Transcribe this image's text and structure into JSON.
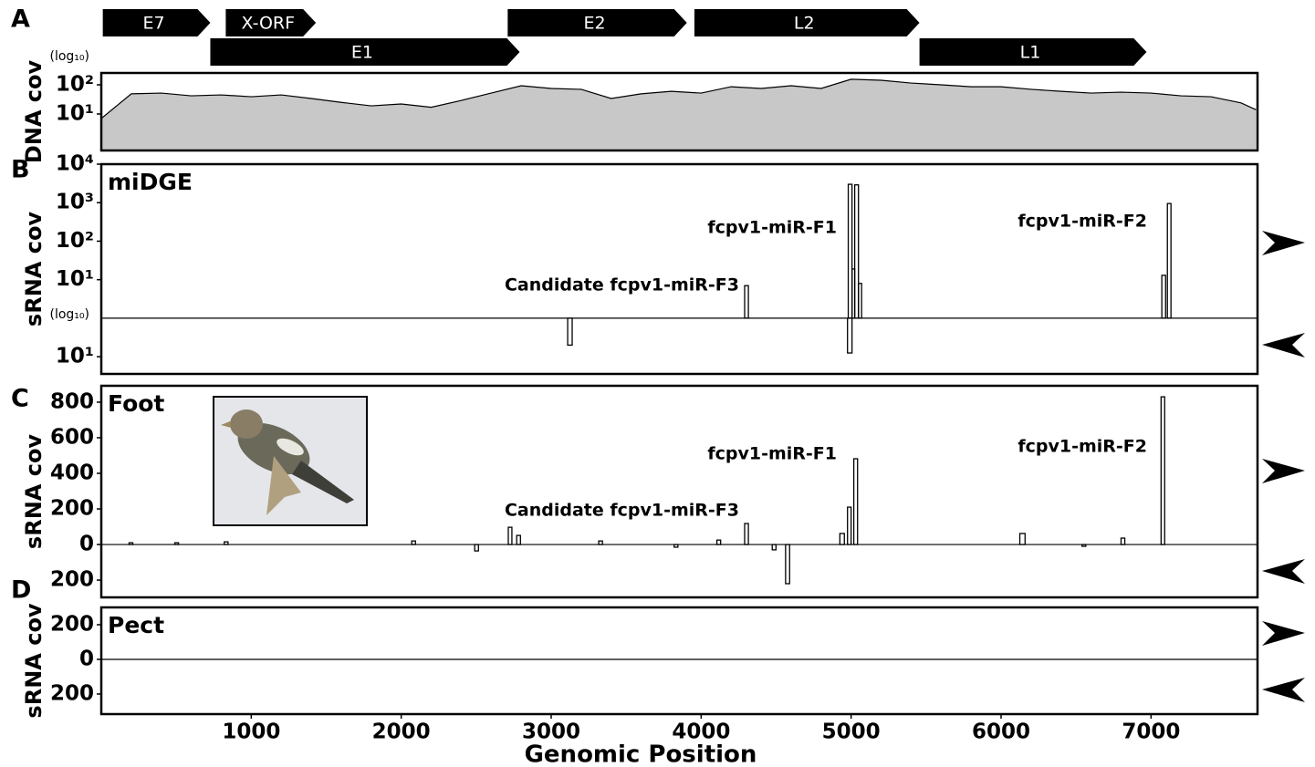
{
  "chart_data": {
    "type": "genome-coverage",
    "xlabel": "Genomic Position",
    "xlim": [
      0,
      7710
    ],
    "xticks": [
      1000,
      2000,
      3000,
      4000,
      5000,
      6000,
      7000
    ],
    "genes": [
      {
        "name": "E7",
        "start": 10,
        "end": 727
      },
      {
        "name": "X-ORF",
        "start": 830,
        "end": 1431
      },
      {
        "name": "E1",
        "start": 727,
        "end": 2790
      },
      {
        "name": "E2",
        "start": 2710,
        "end": 3905
      },
      {
        "name": "L2",
        "start": 3955,
        "end": 5456
      },
      {
        "name": "L1",
        "start": 5456,
        "end": 6970
      }
    ],
    "panels": [
      {
        "type": "area",
        "letter": "A",
        "ylabel": "DNA cov",
        "scale_note": "(log₁₀)",
        "log": true,
        "ylim": [
          0.56,
          255
        ],
        "yticks": [
          {
            "value": 10,
            "label": "10¹"
          },
          {
            "value": 100,
            "label": "10²"
          }
        ],
        "color": "#c8c8c8",
        "line_color": "#000000",
        "x": [
          0,
          200,
          400,
          600,
          800,
          1000,
          1200,
          1400,
          1600,
          1800,
          2000,
          2200,
          2400,
          2600,
          2800,
          3000,
          3200,
          3400,
          3600,
          3800,
          4000,
          4200,
          4400,
          4600,
          4800,
          5000,
          5200,
          5400,
          5600,
          5800,
          6000,
          6200,
          6400,
          6600,
          6800,
          7000,
          7200,
          7400,
          7600,
          7700
        ],
        "values": [
          7,
          49,
          52,
          42,
          45,
          39,
          45,
          34,
          25,
          19,
          22,
          17,
          29,
          52,
          93,
          75,
          70,
          34,
          49,
          60,
          52,
          86,
          75,
          93,
          75,
          155,
          143,
          115,
          100,
          86,
          86,
          70,
          60,
          52,
          56,
          52,
          42,
          39,
          24,
          14
        ]
      },
      {
        "type": "bar-mirror",
        "letter": "B",
        "title": "miDGE",
        "ylabel": "sRNA cov",
        "scale_note": "(log₁₀)",
        "log": true,
        "ylim": [
          1,
          10000
        ],
        "yticks": [
          {
            "value": 10,
            "label": "10¹"
          },
          {
            "value": 100,
            "label": "10²"
          },
          {
            "value": 1000,
            "label": "10³"
          },
          {
            "value": 10000,
            "label": "10⁴"
          }
        ],
        "ylim_minus": [
          1,
          28
        ],
        "yticks_minus": [
          {
            "value": 10,
            "label": "10¹"
          }
        ],
        "color": "#000000",
        "plus": {
          "x0": [
            4290,
            4981,
            5006,
            5024,
            5049,
            7072,
            7109
          ],
          "x1": [
            4315,
            5006,
            5024,
            5049,
            5070,
            7097,
            7133
          ],
          "values": [
            7,
            3000,
            19,
            2900,
            8,
            13,
            950
          ]
        },
        "minus": {
          "x0": [
            3110,
            4976
          ],
          "x1": [
            3140,
            5006
          ],
          "values": [
            5,
            8
          ]
        },
        "annotations": [
          "fcpv1-miR-F1",
          "fcpv1-miR-F2",
          "Candidate fcpv1-miR-F3"
        ]
      },
      {
        "type": "bar-mirror",
        "letter": "C",
        "title": "Foot",
        "ylabel": "sRNA cov",
        "log": false,
        "ylim": [
          0,
          892
        ],
        "yticks": [
          0,
          200,
          400,
          600,
          800
        ],
        "ylim_minus": [
          0,
          297
        ],
        "yticks_minus": [
          200
        ],
        "color": "#000000",
        "plus": {
          "x0": [
            185,
            490,
            820,
            2070,
            2714,
            2770,
            3317,
            4105,
            4290,
            4925,
            4976,
            5018,
            6125,
            6800,
            7067
          ],
          "x1": [
            210,
            515,
            845,
            2095,
            2738,
            2795,
            3342,
            4130,
            4315,
            4955,
            5000,
            5043,
            6160,
            6825,
            7091
          ],
          "values": [
            10,
            10,
            15,
            20,
            97,
            51,
            20,
            25,
            118,
            62,
            210,
            482,
            62,
            36,
            830
          ]
        },
        "minus": {
          "x0": [
            2490,
            3820,
            4474,
            4563,
            6540
          ],
          "x1": [
            2515,
            3845,
            4499,
            4590,
            6565
          ],
          "values": [
            36,
            15,
            30,
            220,
            10
          ]
        },
        "annotations": [
          "fcpv1-miR-F1",
          "fcpv1-miR-F2",
          "Candidate fcpv1-miR-F3"
        ]
      },
      {
        "type": "bar-mirror",
        "letter": "D",
        "title": "Pect",
        "ylabel": "sRNA cov",
        "log": false,
        "ylim": [
          0,
          300
        ],
        "yticks": [
          0,
          200
        ],
        "ylim_minus": [
          0,
          316
        ],
        "yticks_minus": [
          200
        ],
        "color": "#000000"
      }
    ]
  }
}
